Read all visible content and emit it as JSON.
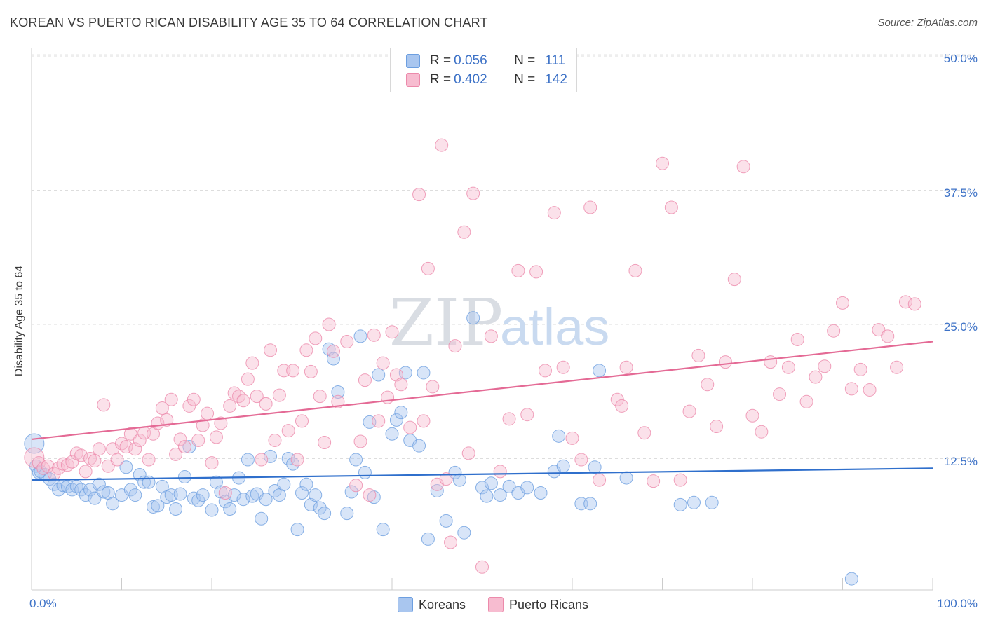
{
  "title": "KOREAN VS PUERTO RICAN DISABILITY AGE 35 TO 64 CORRELATION CHART",
  "source": "Source: ZipAtlas.com",
  "watermark": {
    "zip": "ZIP",
    "atlas": "atlas"
  },
  "legend": {
    "r_label": "R =",
    "n_label": "N =",
    "items": [
      {
        "name": "Koreans",
        "r": "0.056",
        "n": "111",
        "color": "#a9c6ef",
        "stroke": "#6d9fe0"
      },
      {
        "name": "Puerto Ricans",
        "r": "0.402",
        "n": "142",
        "color": "#f7bcd0",
        "stroke": "#ec8aab"
      }
    ]
  },
  "chart_data": {
    "type": "scatter",
    "title": "KOREAN VS PUERTO RICAN DISABILITY AGE 35 TO 64 CORRELATION CHART",
    "xlabel": "",
    "ylabel": "Disability Age 35 to 64",
    "xlim": [
      0,
      100
    ],
    "ylim": [
      0,
      50
    ],
    "x_tick_labels": [
      "0.0%",
      "100.0%"
    ],
    "y_ticks": [
      12.5,
      25.0,
      37.5,
      50.0
    ],
    "y_tick_labels": [
      "12.5%",
      "25.0%",
      "37.5%",
      "50.0%"
    ],
    "grid": true,
    "legend_position": "top-center",
    "series": [
      {
        "name": "Koreans",
        "color": "#6d9fe0",
        "fill": "#a9c6ef",
        "trend": {
          "x": [
            0,
            100
          ],
          "y": [
            10.5,
            11.6
          ]
        },
        "points": [
          [
            0.3,
            13.9
          ],
          [
            0.5,
            11.8
          ],
          [
            0.8,
            11.2
          ],
          [
            1,
            11.3
          ],
          [
            1.5,
            11
          ],
          [
            2,
            10.6
          ],
          [
            2.5,
            10.1
          ],
          [
            3,
            9.6
          ],
          [
            3.5,
            10
          ],
          [
            4,
            9.9
          ],
          [
            4.5,
            9.6
          ],
          [
            5,
            9.9
          ],
          [
            5.5,
            9.6
          ],
          [
            6,
            9.1
          ],
          [
            6.5,
            9.6
          ],
          [
            7,
            8.8
          ],
          [
            7.5,
            10.1
          ],
          [
            8,
            9.4
          ],
          [
            8.5,
            9.3
          ],
          [
            9,
            8.3
          ],
          [
            10,
            9.1
          ],
          [
            10.5,
            11.7
          ],
          [
            11,
            9.6
          ],
          [
            11.5,
            9.1
          ],
          [
            12,
            11
          ],
          [
            12.5,
            10.3
          ],
          [
            13,
            10.3
          ],
          [
            13.5,
            8
          ],
          [
            14,
            8.1
          ],
          [
            14.5,
            9.9
          ],
          [
            15,
            8.9
          ],
          [
            15.5,
            9.1
          ],
          [
            16,
            7.8
          ],
          [
            16.5,
            9.2
          ],
          [
            17,
            10.8
          ],
          [
            17.5,
            13.6
          ],
          [
            18,
            8.8
          ],
          [
            18.5,
            8.6
          ],
          [
            19,
            9.1
          ],
          [
            20,
            7.7
          ],
          [
            20.5,
            10.3
          ],
          [
            21,
            9.4
          ],
          [
            21.5,
            8.5
          ],
          [
            22,
            7.8
          ],
          [
            22.5,
            9.1
          ],
          [
            23,
            10.7
          ],
          [
            23.5,
            8.7
          ],
          [
            24,
            12.4
          ],
          [
            24.5,
            9
          ],
          [
            25,
            9.2
          ],
          [
            25.5,
            6.9
          ],
          [
            26,
            8.7
          ],
          [
            26.5,
            12.7
          ],
          [
            27,
            9.5
          ],
          [
            27.5,
            9.1
          ],
          [
            28,
            10.1
          ],
          [
            28.5,
            12.5
          ],
          [
            29,
            12
          ],
          [
            29.5,
            5.9
          ],
          [
            30,
            9.3
          ],
          [
            30.5,
            10.1
          ],
          [
            31,
            8.2
          ],
          [
            31.5,
            9.1
          ],
          [
            32,
            7.9
          ],
          [
            32.5,
            7.4
          ],
          [
            33,
            22.7
          ],
          [
            33.5,
            21.8
          ],
          [
            34,
            18.7
          ],
          [
            35,
            7.4
          ],
          [
            35.5,
            9.4
          ],
          [
            36,
            12.4
          ],
          [
            36.5,
            23.9
          ],
          [
            37,
            11.2
          ],
          [
            37.5,
            15.9
          ],
          [
            38,
            8.9
          ],
          [
            38.5,
            20.3
          ],
          [
            39,
            5.9
          ],
          [
            40,
            14.8
          ],
          [
            40.5,
            16.1
          ],
          [
            41,
            16.8
          ],
          [
            41.5,
            20.5
          ],
          [
            42,
            14.2
          ],
          [
            43,
            13.7
          ],
          [
            43.5,
            20.5
          ],
          [
            44,
            5
          ],
          [
            45,
            9.5
          ],
          [
            46,
            6.7
          ],
          [
            47,
            11.2
          ],
          [
            47.5,
            10.5
          ],
          [
            48,
            5.6
          ],
          [
            49,
            25.6
          ],
          [
            50,
            9.8
          ],
          [
            50.5,
            9
          ],
          [
            51,
            10.2
          ],
          [
            52,
            9.1
          ],
          [
            53,
            9.9
          ],
          [
            54,
            9.3
          ],
          [
            55,
            9.8
          ],
          [
            56.5,
            9.3
          ],
          [
            58,
            11.3
          ],
          [
            58.5,
            14.6
          ],
          [
            59,
            11.8
          ],
          [
            61,
            8.3
          ],
          [
            62,
            8.3
          ],
          [
            62.5,
            11.7
          ],
          [
            63,
            20.7
          ],
          [
            66,
            10.7
          ],
          [
            72,
            8.2
          ],
          [
            73.5,
            8.4
          ],
          [
            75.5,
            8.4
          ],
          [
            91,
            1.3
          ]
        ]
      },
      {
        "name": "Puerto Ricans",
        "color": "#ec8aab",
        "fill": "#f7bcd0",
        "trend": {
          "x": [
            0,
            100
          ],
          "y": [
            14.3,
            23.4
          ]
        },
        "points": [
          [
            0.3,
            12.6
          ],
          [
            0.8,
            12.1
          ],
          [
            1.3,
            11.6
          ],
          [
            1.8,
            11.8
          ],
          [
            2.5,
            11.1
          ],
          [
            3,
            11.6
          ],
          [
            3.5,
            12
          ],
          [
            4,
            11.9
          ],
          [
            4.5,
            12.2
          ],
          [
            5,
            13
          ],
          [
            5.5,
            12.8
          ],
          [
            6,
            11.3
          ],
          [
            6.5,
            12.5
          ],
          [
            7,
            12.3
          ],
          [
            7.5,
            13.4
          ],
          [
            8,
            17.5
          ],
          [
            8.5,
            11.8
          ],
          [
            9,
            13.4
          ],
          [
            9.5,
            12.4
          ],
          [
            10,
            13.9
          ],
          [
            10.5,
            13.6
          ],
          [
            11,
            14.8
          ],
          [
            11.5,
            13.4
          ],
          [
            12,
            14.2
          ],
          [
            12.5,
            14.9
          ],
          [
            13,
            12.4
          ],
          [
            13.5,
            14.8
          ],
          [
            14,
            15.8
          ],
          [
            14.5,
            17.2
          ],
          [
            15,
            16.1
          ],
          [
            15.5,
            18
          ],
          [
            16,
            12.9
          ],
          [
            16.5,
            14.3
          ],
          [
            17,
            13.6
          ],
          [
            17.5,
            17.4
          ],
          [
            18,
            18
          ],
          [
            18.5,
            14.2
          ],
          [
            19,
            15.6
          ],
          [
            19.5,
            16.7
          ],
          [
            20,
            12.1
          ],
          [
            20.5,
            14.5
          ],
          [
            21,
            15.8
          ],
          [
            21.5,
            9.3
          ],
          [
            22,
            17.4
          ],
          [
            22.5,
            18.6
          ],
          [
            23,
            18.3
          ],
          [
            23.5,
            17.9
          ],
          [
            24,
            19.9
          ],
          [
            24.5,
            21.4
          ],
          [
            25,
            18.3
          ],
          [
            25.5,
            12.4
          ],
          [
            26,
            17.6
          ],
          [
            26.5,
            22.6
          ],
          [
            27,
            14.2
          ],
          [
            27.5,
            18.4
          ],
          [
            28,
            20.7
          ],
          [
            28.5,
            15.1
          ],
          [
            29,
            20.7
          ],
          [
            29.5,
            12.4
          ],
          [
            30,
            16
          ],
          [
            30.5,
            22.6
          ],
          [
            31,
            20.6
          ],
          [
            31.5,
            23.7
          ],
          [
            32,
            18.3
          ],
          [
            32.5,
            14
          ],
          [
            33,
            25
          ],
          [
            33.5,
            22.5
          ],
          [
            34,
            17.8
          ],
          [
            35,
            23.4
          ],
          [
            36,
            10
          ],
          [
            36.5,
            14.1
          ],
          [
            37,
            19.8
          ],
          [
            37.5,
            9.1
          ],
          [
            38,
            24
          ],
          [
            38.5,
            16
          ],
          [
            39,
            21.4
          ],
          [
            39.5,
            18.2
          ],
          [
            40,
            24.3
          ],
          [
            40.5,
            20.3
          ],
          [
            41,
            19.4
          ],
          [
            42,
            15.4
          ],
          [
            43,
            37.1
          ],
          [
            43.5,
            16
          ],
          [
            44,
            30.2
          ],
          [
            44.5,
            19.2
          ],
          [
            45,
            10.1
          ],
          [
            45.5,
            41.7
          ],
          [
            46,
            10.6
          ],
          [
            46.5,
            4.7
          ],
          [
            47,
            23
          ],
          [
            48,
            33.6
          ],
          [
            48.5,
            13
          ],
          [
            49,
            37.2
          ],
          [
            50,
            2.4
          ],
          [
            51,
            23.9
          ],
          [
            52,
            11.3
          ],
          [
            53,
            16.2
          ],
          [
            54,
            30
          ],
          [
            55,
            16.6
          ],
          [
            56,
            29.9
          ],
          [
            57,
            20.7
          ],
          [
            58,
            35.4
          ],
          [
            59,
            21
          ],
          [
            60,
            14.4
          ],
          [
            61,
            12.4
          ],
          [
            62,
            35.9
          ],
          [
            63,
            10.5
          ],
          [
            65,
            18
          ],
          [
            65.5,
            17.4
          ],
          [
            66,
            21
          ],
          [
            67,
            30
          ],
          [
            68,
            14.9
          ],
          [
            69,
            10.4
          ],
          [
            70,
            40
          ],
          [
            71,
            35.9
          ],
          [
            72,
            10.5
          ],
          [
            73,
            16.9
          ],
          [
            74,
            22.1
          ],
          [
            75,
            19.4
          ],
          [
            76,
            15.5
          ],
          [
            77,
            21.5
          ],
          [
            78,
            29.2
          ],
          [
            79,
            39.7
          ],
          [
            80,
            16.5
          ],
          [
            81,
            15
          ],
          [
            82,
            21.5
          ],
          [
            83,
            18.5
          ],
          [
            84,
            21
          ],
          [
            85,
            23.6
          ],
          [
            86,
            17.8
          ],
          [
            87,
            20.1
          ],
          [
            88,
            21.1
          ],
          [
            89,
            24.4
          ],
          [
            90,
            27
          ],
          [
            91,
            19
          ],
          [
            92,
            20.8
          ],
          [
            93,
            18.9
          ],
          [
            94,
            24.5
          ],
          [
            95,
            23.9
          ],
          [
            96,
            21
          ],
          [
            97,
            27.1
          ],
          [
            98,
            26.9
          ]
        ]
      }
    ]
  }
}
